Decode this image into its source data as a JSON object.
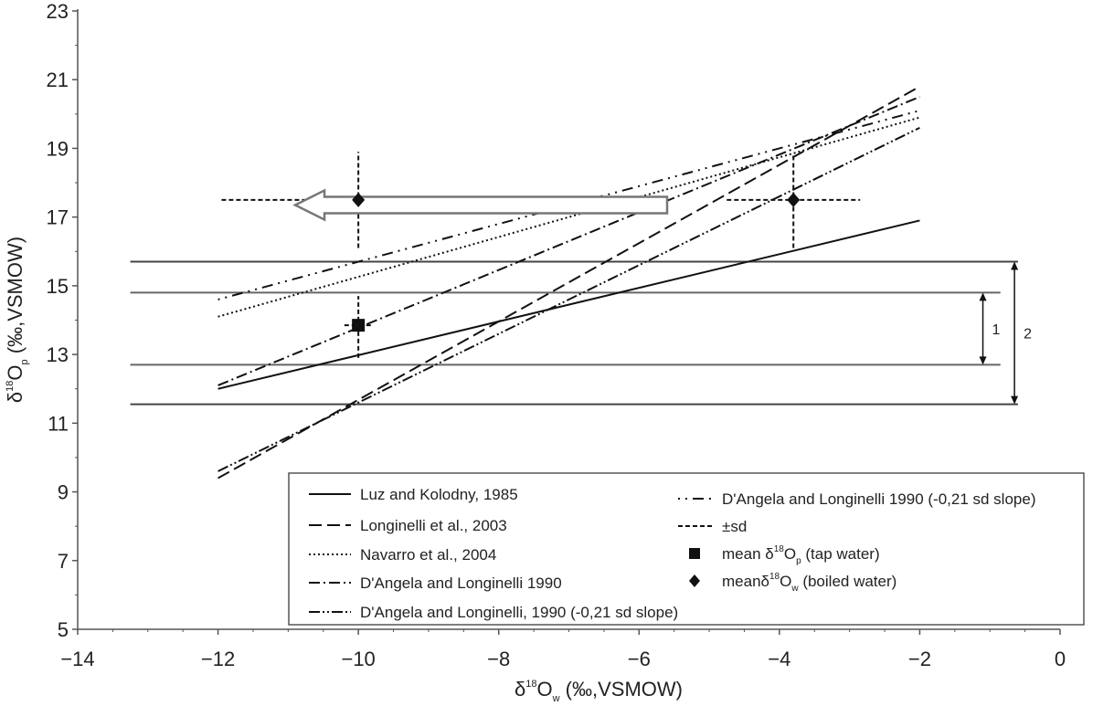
{
  "chart_data": {
    "type": "line",
    "xlabel": {
      "prefix": "δ",
      "sup": "18",
      "main": "O",
      "sub": "w",
      "suffix": " (‰,VSMOW)"
    },
    "ylabel": {
      "prefix": "δ",
      "sup": "18",
      "main": "O",
      "sub": "p",
      "suffix": " (‰,VSMOW)"
    },
    "xlim": [
      -14,
      0
    ],
    "ylim": [
      5,
      23
    ],
    "x_ticks": [
      -14,
      -12,
      -10,
      -8,
      -6,
      -4,
      -2,
      0
    ],
    "x_tick_labels": [
      "−14",
      "−12",
      "−10",
      "−8",
      "−6",
      "−4",
      "−2",
      "0"
    ],
    "y_ticks": [
      5,
      7,
      9,
      11,
      13,
      15,
      17,
      19,
      21,
      23
    ],
    "y_tick_labels": [
      "5",
      "7",
      "9",
      "11",
      "13",
      "15",
      "17",
      "19",
      "21",
      "23"
    ],
    "grid": false,
    "series": [
      {
        "name": "Luz and Kolodny, 1985",
        "style": "solid",
        "x": [
          -12,
          -2
        ],
        "y": [
          12.0,
          16.9
        ]
      },
      {
        "name": "Longinelli et al., 2003",
        "style": "dash",
        "x": [
          -12,
          -2
        ],
        "y": [
          9.4,
          20.8
        ]
      },
      {
        "name": "Navarro et al., 2004",
        "style": "dot",
        "x": [
          -12,
          -2
        ],
        "y": [
          14.1,
          19.9
        ]
      },
      {
        "name": "D'Angela and Longinelli 1990",
        "style": "dashdot",
        "x": [
          -12,
          -2
        ],
        "y": [
          12.1,
          20.5
        ]
      },
      {
        "name": "D'Angela and Longinelli, 1990 (-0,21 sd slope)",
        "style": "dashdotdot",
        "x": [
          -12,
          -2
        ],
        "y": [
          9.6,
          19.6
        ]
      },
      {
        "name": "D'Angela and Longinelli 1990 (-0,21 sd slope)",
        "style": "dotdot",
        "x": [
          -12,
          -2
        ],
        "y": [
          14.6,
          20.1
        ]
      }
    ],
    "points": [
      {
        "name": "mean δ18Op (tap water)",
        "marker": "square",
        "x": -10,
        "y": 13.85,
        "xerr": 0.2,
        "yerr": [
          12.9,
          14.7
        ]
      },
      {
        "name": "meanδ18Ow (boiled water)",
        "marker": "diamond",
        "x": -10,
        "y": 17.5,
        "xerr": 1.95,
        "yerr": [
          16.1,
          18.9
        ]
      },
      {
        "name": "meanδ18Ow (boiled water)",
        "marker": "diamond",
        "x": -3.8,
        "y": 17.5,
        "xerr": 0.95,
        "yerr": [
          16.1,
          18.8
        ]
      }
    ],
    "bands": [
      {
        "label": "1",
        "y_low": 12.7,
        "y_high": 14.8
      },
      {
        "label": "2",
        "y_low": 11.55,
        "y_high": 15.7
      }
    ],
    "arrow": {
      "from": [
        -5.6,
        17.35
      ],
      "to": [
        -10.9,
        17.35
      ]
    },
    "legend": {
      "placement": "bottom-right",
      "entries": [
        {
          "text": "Luz and Kolodny, 1985",
          "sym": "solid"
        },
        {
          "text": "Longinelli et al., 2003",
          "sym": "dash"
        },
        {
          "text": "Navarro et al., 2004",
          "sym": "dot"
        },
        {
          "text": "D'Angela and Longinelli 1990",
          "sym": "dashdot"
        },
        {
          "text": "D'Angela and Longinelli, 1990 (-0,21 sd slope)",
          "sym": "dashdotdot"
        },
        {
          "text": "D'Angela and Longinelli 1990 (-0,21 sd slope)",
          "sym": "dotdot"
        },
        {
          "text": "±sd",
          "sym": "sd"
        },
        {
          "text": "mean δ18Op (tap water)",
          "sym": "square",
          "parts": [
            "mean δ",
            "18",
            "O",
            "p",
            " (tap water)"
          ]
        },
        {
          "text": "meanδ18Ow (boiled water)",
          "sym": "diamond",
          "parts": [
            "meanδ",
            "18",
            "O",
            "w",
            " (boiled water)"
          ]
        }
      ]
    }
  }
}
